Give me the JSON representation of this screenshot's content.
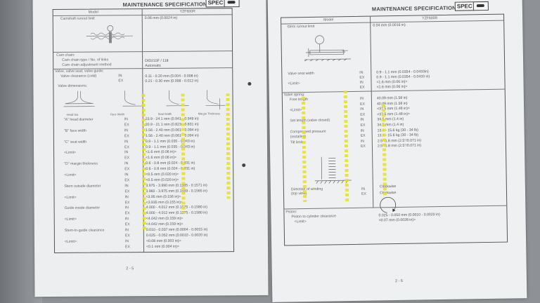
{
  "header": {
    "title": "MAINTENANCE SPECIFICATIONS",
    "badge": "SPEC",
    "icon": "wrench-icon"
  },
  "left_page": {
    "model_label": "Model",
    "model_value": "YZF600R",
    "camshaft": {
      "label": "Camshaft runout limit",
      "value": "0.06 mm (0.0024 in)"
    },
    "cam_chain": {
      "label": "Cam chain:",
      "type_label": "Cam chain type / No. of links",
      "type_value": "DID215F / 118",
      "adj_label": "Cam chain adjustment method",
      "adj_value": "Automatic"
    },
    "valve": {
      "label": "Valve, valve seat, valve guide:",
      "clearance_label": "Valve clearance (cold)",
      "clearance_in": "0.11 - 0.20 mm (0.004 - 0.008 in)",
      "clearance_ex": "0.21 - 0.30 mm (0.008 - 0.012 in)",
      "dims_label": "Valve dimensions:"
    },
    "figures": [
      "Head Dia",
      "Face Width",
      "Seat Width",
      "Margin Thickness"
    ],
    "rows": [
      {
        "label": "\"A\" head diameter",
        "side": "IN",
        "value": "23.9 - 24.1 mm (0.941 - 0.949 in)"
      },
      {
        "label": "",
        "side": "EX",
        "value": "20.9 - 21.1 mm (0.823 - 0.831 in)"
      },
      {
        "label": "\"B\" face width",
        "side": "IN",
        "value": "1.56 - 2.40 mm (0.061 - 0.094 in)"
      },
      {
        "label": "",
        "side": "EX",
        "value": "1.56 - 2.40 mm (0.061 - 0.094 in)"
      },
      {
        "label": "\"C\" seat width",
        "side": "IN",
        "value": "0.9 - 1.1 mm (0.035 - 0.043 in)"
      },
      {
        "label": "",
        "side": "EX",
        "value": "0.9 - 1.1 mm (0.035 - 0.043 in)"
      },
      {
        "label": "<Limit>",
        "side": "IN",
        "value": "<1.6 mm (0.06 in)>"
      },
      {
        "label": "",
        "side": "EX",
        "value": "<1.6 mm (0.06 in)>"
      },
      {
        "label": "\"D\" margin thickness",
        "side": "IN",
        "value": "0.6 - 0.8 mm (0.024 - 0.031 in)"
      },
      {
        "label": "",
        "side": "EX",
        "value": "0.6 - 0.8 mm (0.024 - 0.031 in)"
      },
      {
        "label": "<Limit>",
        "side": "IN",
        "value": "<0.5 mm (0.020 in)>"
      },
      {
        "label": "",
        "side": "EX",
        "value": "<0.5 mm (0.020 in)>"
      },
      {
        "label": "Stem outside diameter",
        "side": "IN",
        "value": "3.975 - 3.990 mm (0.1565 - 0.1571 in)"
      },
      {
        "label": "",
        "side": "EX",
        "value": "3.960 - 3.975 mm (0.1559 - 0.1565 in)"
      },
      {
        "label": "<Limit>",
        "side": "IN",
        "value": "<3.95 mm (0.156 in)>"
      },
      {
        "label": "",
        "side": "EX",
        "value": "<3.935 mm (0.155 in)>"
      },
      {
        "label": "Guide inside diameter",
        "side": "IN",
        "value": "4.000 - 4.012 mm (0.1575 - 0.1580 in)"
      },
      {
        "label": "",
        "side": "EX",
        "value": "4.000 - 4.012 mm (0.1575 - 0.1580 in)"
      },
      {
        "label": "<Limit>",
        "side": "IN",
        "value": "<4.042 mm (0.159 in)>"
      },
      {
        "label": "",
        "side": "EX",
        "value": "<4.042 mm (0.159 in)>"
      },
      {
        "label": "Stem-to-guide clearance",
        "side": "IN",
        "value": "0.010 - 0.037 mm (0.0004 - 0.0015 in)"
      },
      {
        "label": "",
        "side": "EX",
        "value": "0.025 - 0.052 mm (0.0010 - 0.0020 in)"
      },
      {
        "label": "<Limit>",
        "side": "IN",
        "value": "<0.08 mm (0.003 in)>"
      },
      {
        "label": "",
        "side": "EX",
        "value": "<0.1 mm (0.004 in)>"
      }
    ],
    "page_number": "2 - 5"
  },
  "right_page": {
    "model_label": "Model",
    "model_value": "YZF600R",
    "stem_runout": {
      "label": "Stem runout limit",
      "value": "0.04 mm (0.0016 in)"
    },
    "seat_rows": [
      {
        "label": "Valve seat width",
        "side": "IN",
        "value": "0.9 - 1.1 mm (0.0354 - 0.0433in)"
      },
      {
        "label": "",
        "side": "EX",
        "value": "0.9 - 1.1 mm (0.0354 - 0.0433 in)"
      },
      {
        "label": "<Limit>",
        "side": "IN",
        "value": "<1.6 mm (0.06 in)>"
      },
      {
        "label": "",
        "side": "EX",
        "value": "<1.6 mm (0.06 in)>"
      }
    ],
    "spring_label": "Valve spring:",
    "spring_rows": [
      {
        "label": "Free length",
        "side": "IN",
        "value": "40.09 mm (1.58 in)"
      },
      {
        "label": "",
        "side": "EX",
        "value": "40.09 mm (1.58 in)"
      },
      {
        "label": "<Limit>",
        "side": "IN",
        "value": "<37.5 mm (1.48 in)>"
      },
      {
        "label": "",
        "side": "EX",
        "value": "<37.5 mm (1.48 in)>"
      },
      {
        "label": "Set length (valve closed)",
        "side": "IN",
        "value": "34.5 mm (1.4 in)"
      },
      {
        "label": "",
        "side": "EX",
        "value": "34.5 mm (1.4 in)"
      },
      {
        "label": "Compressed pressure",
        "side": "IN",
        "value": "13.4 - 15.6 kg (30 - 34 lb)"
      },
      {
        "label": "(installed)",
        "side": "EX",
        "value": "13.4 - 15.6 kg (30 - 34 lb)"
      },
      {
        "label": "Tilt limit",
        "side": "IN",
        "value": "2.5°/1.8 mm (2.5°/0.071 in)"
      },
      {
        "label": "",
        "side": "EX",
        "value": "2.5°/1.8 mm (2.5°/0.071 in)"
      }
    ],
    "winding": {
      "label": "Direction of winding",
      "sublabel": "(top view)",
      "in_side": "IN",
      "ex_side": "EX",
      "in_value": "Clockwise",
      "ex_value": "Clockwise"
    },
    "piston": {
      "label": "Piston:",
      "clearance_label": "Piston to cylinder clearance",
      "clearance_value": "0.025 - 0.050 mm (0.0010 - 0.0020 in)",
      "limit_label": "<Limit>",
      "limit_value": "<0.07 mm (0.0028 in)>"
    },
    "page_number": "2 - 6"
  },
  "colors": {
    "paper": "#eceeef",
    "background": "#8e9296",
    "watermark": "#e8e020"
  }
}
